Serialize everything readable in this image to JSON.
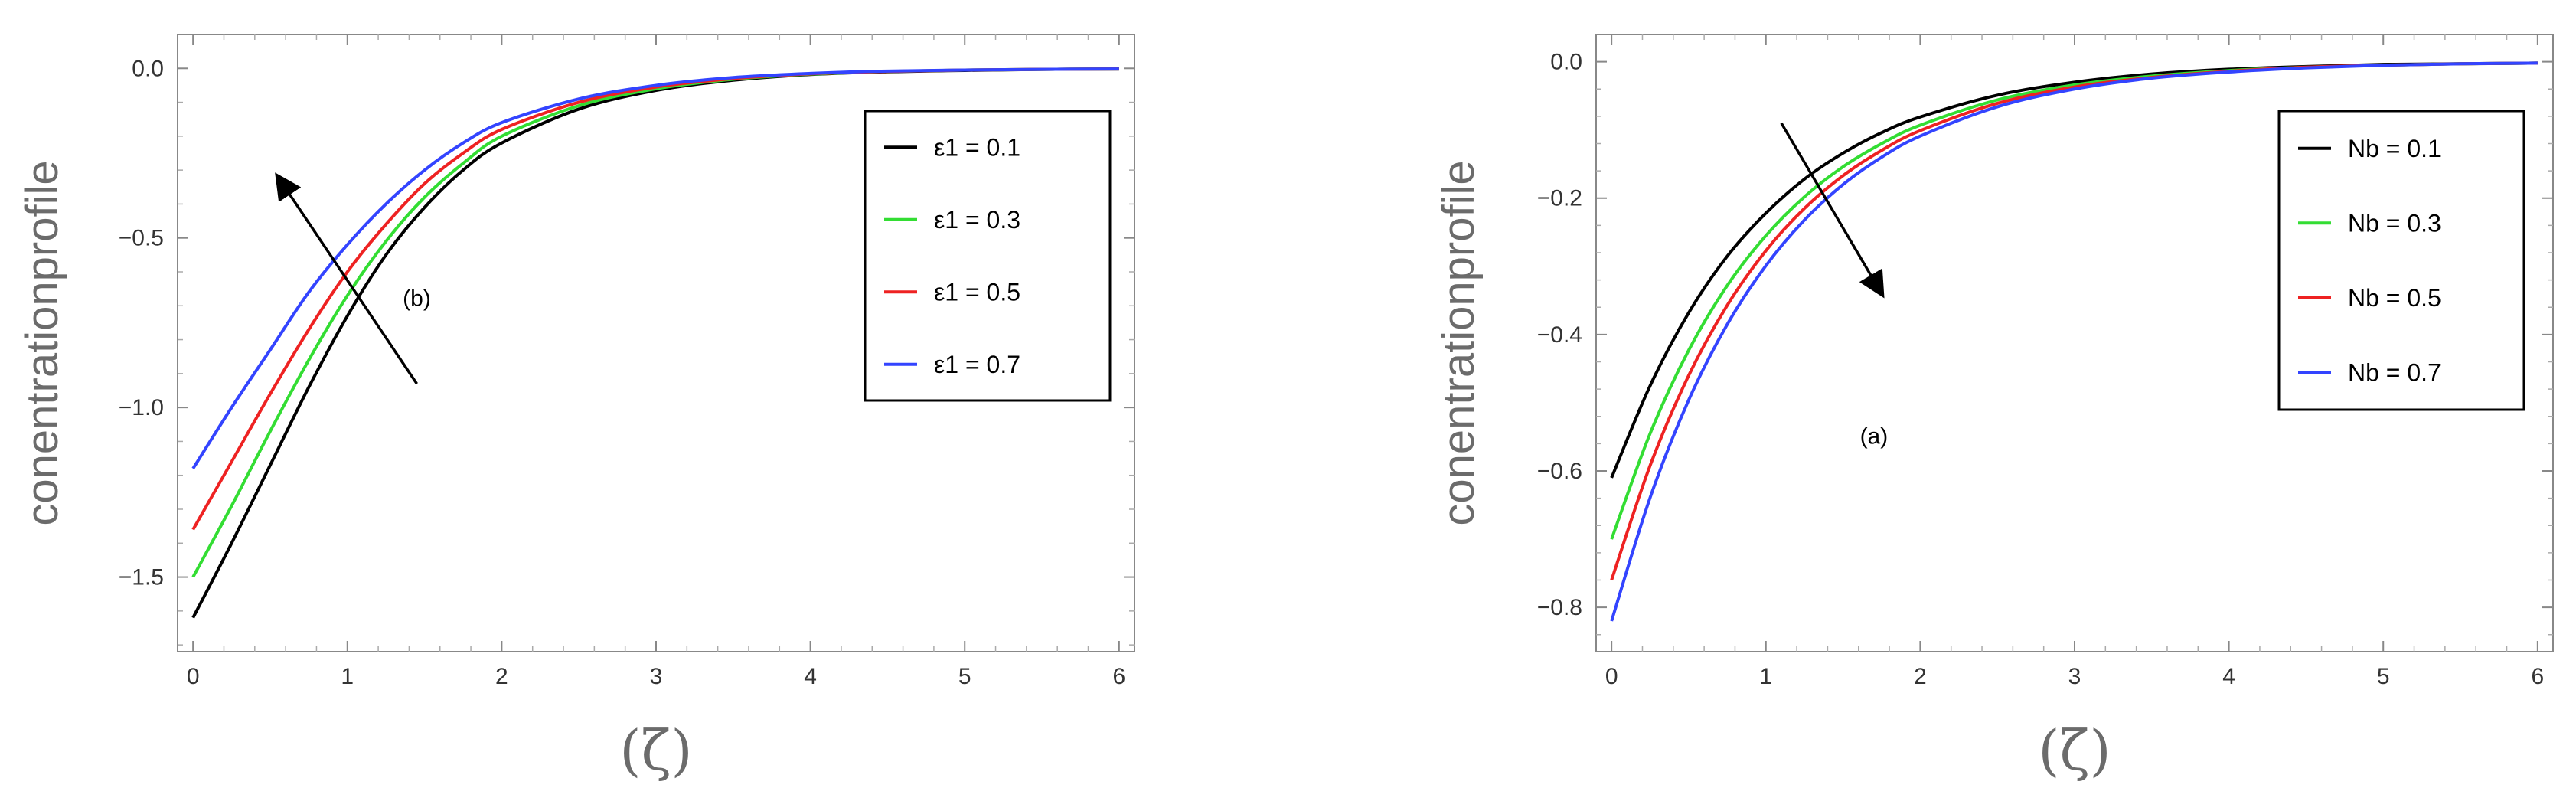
{
  "chart_data": [
    {
      "type": "line",
      "panel_label": "(b)",
      "xlabel": "(ζ)",
      "ylabel": "conentrationprofile",
      "xlim": [
        -0.1,
        6.1
      ],
      "ylim": [
        -1.72,
        0.1
      ],
      "xticks": [
        0,
        1,
        2,
        3,
        4,
        5,
        6
      ],
      "xtick_labels": [
        "0",
        "1",
        "2",
        "3",
        "4",
        "5",
        "6"
      ],
      "yticks": [
        0.0,
        -0.5,
        -1.0,
        -1.5
      ],
      "ytick_labels": [
        "0.0",
        "−0.5",
        "−1.0",
        "−1.5"
      ],
      "grid": false,
      "legend_position": "top-right",
      "x": [
        0,
        0.25,
        0.5,
        0.75,
        1,
        1.25,
        1.5,
        1.75,
        2,
        2.5,
        3,
        3.5,
        4,
        4.5,
        5,
        5.5,
        6
      ],
      "series": [
        {
          "name": "ε1 =  0.1",
          "color": "#000000",
          "values": [
            -1.62,
            -1.4,
            -1.17,
            -0.94,
            -0.73,
            -0.55,
            -0.41,
            -0.3,
            -0.22,
            -0.12,
            -0.065,
            -0.035,
            -0.018,
            -0.01,
            -0.006,
            -0.003,
            -0.002
          ]
        },
        {
          "name": "ε1 =  0.3",
          "color": "#33dd33",
          "values": [
            -1.5,
            -1.29,
            -1.07,
            -0.86,
            -0.67,
            -0.51,
            -0.38,
            -0.28,
            -0.2,
            -0.11,
            -0.06,
            -0.032,
            -0.017,
            -0.009,
            -0.005,
            -0.003,
            -0.002
          ]
        },
        {
          "name": "ε1 =  0.5",
          "color": "#ee2222",
          "values": [
            -1.36,
            -1.16,
            -0.96,
            -0.77,
            -0.6,
            -0.46,
            -0.34,
            -0.25,
            -0.18,
            -0.1,
            -0.055,
            -0.03,
            -0.016,
            -0.009,
            -0.005,
            -0.003,
            -0.002
          ]
        },
        {
          "name": "ε1 =  0.7",
          "color": "#3344ff",
          "values": [
            -1.18,
            -1.0,
            -0.83,
            -0.66,
            -0.52,
            -0.4,
            -0.3,
            -0.22,
            -0.16,
            -0.09,
            -0.05,
            -0.027,
            -0.015,
            -0.008,
            -0.005,
            -0.003,
            -0.002
          ]
        }
      ],
      "arrow": {
        "from": [
          1.45,
          -0.93
        ],
        "to": [
          0.55,
          -0.32
        ]
      },
      "label_position": [
        1.45,
        -0.7
      ]
    },
    {
      "type": "line",
      "panel_label": "(a)",
      "xlabel": "(ζ)",
      "ylabel": "conentrationprofile",
      "xlim": [
        -0.1,
        6.1
      ],
      "ylim": [
        -0.865,
        0.04
      ],
      "xticks": [
        0,
        1,
        2,
        3,
        4,
        5,
        6
      ],
      "xtick_labels": [
        "0",
        "1",
        "2",
        "3",
        "4",
        "5",
        "6"
      ],
      "yticks": [
        0.0,
        -0.2,
        -0.4,
        -0.6,
        -0.8
      ],
      "ytick_labels": [
        "0.0",
        "−0.2",
        "−0.4",
        "−0.6",
        "−0.8"
      ],
      "grid": false,
      "legend_position": "top-right",
      "x": [
        0,
        0.25,
        0.5,
        0.75,
        1,
        1.25,
        1.5,
        1.75,
        2,
        2.5,
        3,
        3.5,
        4,
        4.5,
        5,
        5.5,
        6
      ],
      "series": [
        {
          "name": "Nb =  0.1",
          "color": "#000000",
          "values": [
            -0.61,
            -0.475,
            -0.368,
            -0.285,
            -0.222,
            -0.172,
            -0.134,
            -0.104,
            -0.081,
            -0.049,
            -0.03,
            -0.018,
            -0.011,
            -0.007,
            -0.004,
            -0.003,
            -0.002
          ]
        },
        {
          "name": "Nb =  0.3",
          "color": "#33dd33",
          "values": [
            -0.7,
            -0.545,
            -0.423,
            -0.328,
            -0.255,
            -0.198,
            -0.154,
            -0.12,
            -0.093,
            -0.056,
            -0.034,
            -0.021,
            -0.013,
            -0.008,
            -0.005,
            -0.003,
            -0.002
          ]
        },
        {
          "name": "Nb = 0.5",
          "color": "#ee2222",
          "values": [
            -0.76,
            -0.592,
            -0.46,
            -0.357,
            -0.277,
            -0.215,
            -0.167,
            -0.13,
            -0.101,
            -0.061,
            -0.037,
            -0.023,
            -0.014,
            -0.008,
            -0.005,
            -0.003,
            -0.002
          ]
        },
        {
          "name": "Nb =  0.7",
          "color": "#3344ff",
          "values": [
            -0.82,
            -0.639,
            -0.496,
            -0.385,
            -0.299,
            -0.232,
            -0.18,
            -0.14,
            -0.109,
            -0.066,
            -0.04,
            -0.024,
            -0.015,
            -0.009,
            -0.005,
            -0.003,
            -0.002
          ]
        }
      ],
      "arrow": {
        "from": [
          1.1,
          -0.09
        ],
        "to": [
          1.75,
          -0.34
        ]
      },
      "label_position": [
        1.7,
        -0.56
      ]
    }
  ]
}
